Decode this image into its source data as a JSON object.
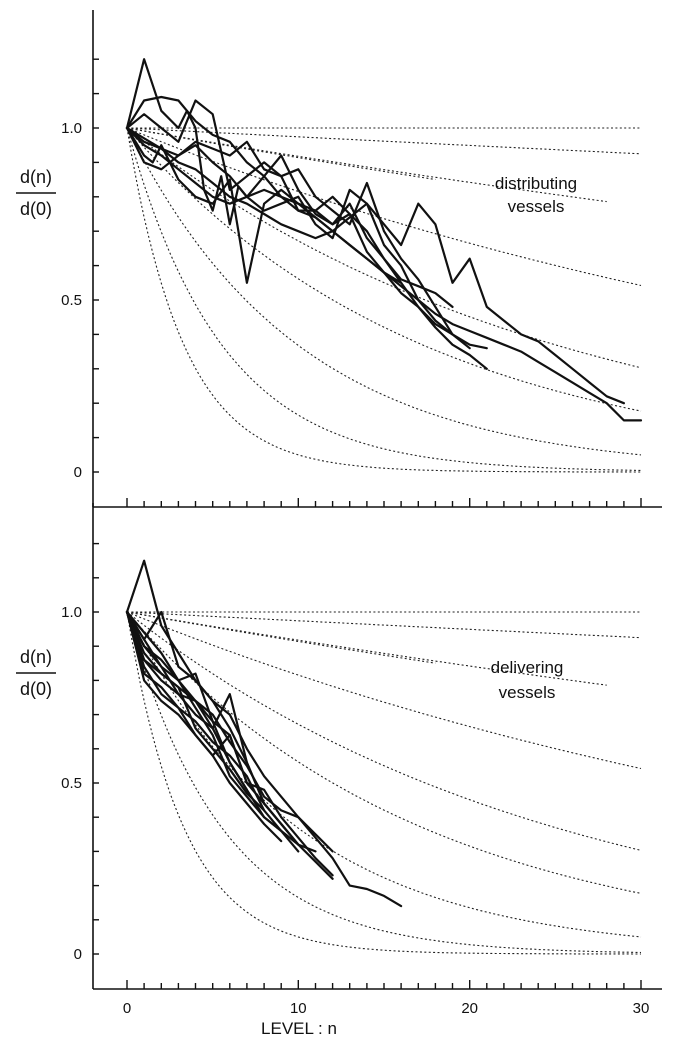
{
  "chart_data": [
    {
      "type": "line",
      "panel": "top",
      "annotation": [
        "distributing",
        "vessels"
      ],
      "ylabel_num": "d(n)",
      "ylabel_den": "d(0)",
      "xlabel": "",
      "xlim": [
        0,
        30
      ],
      "ylim": [
        0,
        1.2
      ],
      "y_tick_labels": [
        {
          "value": 0,
          "label": "0"
        },
        {
          "value": 0.5,
          "label": "0.5"
        },
        {
          "value": 1.0,
          "label": "1.0"
        }
      ],
      "x_tick_labels": [],
      "grid": false,
      "reference_curves": [
        {
          "rate": 0.0,
          "x_end": 30
        },
        {
          "rate": 0.0026,
          "x_end": 30
        },
        {
          "rate": 0.009,
          "x_end": 18
        },
        {
          "rate": 0.0086,
          "x_end": 28
        },
        {
          "rate": 0.0204,
          "x_end": 30
        },
        {
          "rate": 0.0398,
          "x_end": 30
        },
        {
          "rate": 0.0577,
          "x_end": 30
        },
        {
          "rate": 0.1,
          "x_end": 30
        },
        {
          "rate": 0.18,
          "x_end": 30
        },
        {
          "rate": 0.3,
          "x_end": 30
        }
      ],
      "series": [
        {
          "x": [
            0,
            1,
            2,
            3,
            3.5,
            4,
            4.5,
            5,
            5.5,
            6,
            6.5,
            7,
            8,
            9,
            10,
            11,
            12,
            13,
            14,
            15,
            16,
            17,
            18,
            19
          ],
          "y": [
            1.0,
            1.2,
            1.05,
            1.0,
            1.05,
            1.0,
            0.82,
            0.76,
            0.86,
            0.72,
            0.83,
            0.8,
            0.86,
            0.92,
            0.82,
            0.75,
            0.72,
            0.78,
            0.68,
            0.62,
            0.56,
            0.54,
            0.52,
            0.48
          ]
        },
        {
          "x": [
            0,
            1,
            2,
            3,
            4,
            5,
            6,
            7,
            8,
            9,
            10,
            11,
            12,
            13,
            14,
            15,
            16,
            17,
            18,
            19
          ],
          "y": [
            1.0,
            1.08,
            1.09,
            1.08,
            1.02,
            0.98,
            0.96,
            0.9,
            0.86,
            0.8,
            0.76,
            0.76,
            0.8,
            0.75,
            0.7,
            0.62,
            0.55,
            0.48,
            0.43,
            0.4
          ]
        },
        {
          "x": [
            0,
            1,
            2,
            3,
            4,
            5,
            6,
            7,
            8,
            9,
            10,
            11,
            12,
            13,
            14,
            15,
            16,
            17,
            18,
            19,
            20
          ],
          "y": [
            1.0,
            1.04,
            1.0,
            0.96,
            1.08,
            1.04,
            0.82,
            0.86,
            0.9,
            0.86,
            0.88,
            0.8,
            0.76,
            0.72,
            0.84,
            0.7,
            0.62,
            0.56,
            0.48,
            0.4,
            0.36
          ]
        },
        {
          "x": [
            0,
            1,
            1.5,
            2,
            3,
            4,
            5,
            6,
            6.5,
            7,
            8,
            9,
            10,
            11,
            12,
            13,
            14,
            15,
            16,
            17,
            18,
            19,
            20,
            21
          ],
          "y": [
            1.0,
            0.92,
            0.9,
            0.95,
            0.85,
            0.8,
            0.78,
            0.85,
            0.7,
            0.55,
            0.78,
            0.82,
            0.78,
            0.76,
            0.72,
            0.75,
            0.64,
            0.58,
            0.52,
            0.48,
            0.42,
            0.37,
            0.34,
            0.3
          ]
        },
        {
          "x": [
            0,
            1,
            2,
            3,
            4,
            5,
            6,
            7,
            8,
            9,
            10,
            11,
            12,
            13,
            14,
            15,
            16,
            17,
            18,
            19,
            20,
            21
          ],
          "y": [
            1.0,
            0.96,
            0.94,
            0.92,
            0.95,
            0.9,
            0.86,
            0.8,
            0.76,
            0.78,
            0.8,
            0.72,
            0.68,
            0.82,
            0.78,
            0.66,
            0.6,
            0.5,
            0.44,
            0.4,
            0.37,
            0.36
          ]
        },
        {
          "x": [
            0,
            1,
            2,
            3,
            4,
            5,
            6,
            7,
            8,
            9,
            10,
            11,
            12,
            13,
            14,
            15,
            16,
            17,
            18,
            19,
            20,
            21,
            22,
            23,
            24,
            25,
            26,
            27,
            28,
            29,
            30
          ],
          "y": [
            1.0,
            0.95,
            0.92,
            0.88,
            0.84,
            0.8,
            0.78,
            0.8,
            0.82,
            0.8,
            0.78,
            0.74,
            0.7,
            0.66,
            0.62,
            0.58,
            0.54,
            0.5,
            0.46,
            0.43,
            0.41,
            0.39,
            0.37,
            0.35,
            0.32,
            0.29,
            0.26,
            0.23,
            0.2,
            0.15,
            0.15
          ]
        },
        {
          "x": [
            0,
            1,
            2,
            3,
            4,
            5,
            6,
            7,
            8,
            9,
            10,
            11,
            12,
            13,
            14,
            15,
            16,
            17,
            18,
            19,
            20,
            21,
            22,
            23,
            24,
            25,
            26,
            27,
            28,
            29
          ],
          "y": [
            1.0,
            0.97,
            0.94,
            0.9,
            0.88,
            0.84,
            0.8,
            0.78,
            0.75,
            0.72,
            0.7,
            0.68,
            0.7,
            0.74,
            0.78,
            0.72,
            0.66,
            0.78,
            0.72,
            0.55,
            0.62,
            0.48,
            0.44,
            0.4,
            0.38,
            0.34,
            0.3,
            0.26,
            0.22,
            0.2
          ]
        },
        {
          "x": [
            0,
            1,
            2,
            3,
            4,
            5,
            6,
            7,
            8,
            9,
            10,
            11,
            12,
            13,
            14,
            15,
            16
          ],
          "y": [
            1.0,
            0.9,
            0.88,
            0.92,
            0.96,
            0.94,
            0.92,
            0.96,
            0.88,
            0.86,
            0.76,
            0.74,
            0.7,
            0.66,
            0.62,
            0.58,
            0.55
          ]
        }
      ]
    },
    {
      "type": "line",
      "panel": "bottom",
      "annotation": [
        "delivering",
        "vessels"
      ],
      "ylabel_num": "d(n)",
      "ylabel_den": "d(0)",
      "xlabel": "LEVEL : n",
      "xlim": [
        0,
        30
      ],
      "ylim": [
        0,
        1.2
      ],
      "y_tick_labels": [
        {
          "value": 0,
          "label": "0"
        },
        {
          "value": 0.5,
          "label": "0.5"
        },
        {
          "value": 1.0,
          "label": "1.0"
        }
      ],
      "x_tick_labels": [
        {
          "value": 0,
          "label": "0"
        },
        {
          "value": 10,
          "label": "10"
        },
        {
          "value": 20,
          "label": "20"
        },
        {
          "value": 30,
          "label": "30"
        }
      ],
      "grid": false,
      "reference_curves": [
        {
          "rate": 0.0,
          "x_end": 30
        },
        {
          "rate": 0.0026,
          "x_end": 30
        },
        {
          "rate": 0.009,
          "x_end": 18
        },
        {
          "rate": 0.0086,
          "x_end": 28
        },
        {
          "rate": 0.0204,
          "x_end": 30
        },
        {
          "rate": 0.0398,
          "x_end": 30
        },
        {
          "rate": 0.0577,
          "x_end": 30
        },
        {
          "rate": 0.1,
          "x_end": 30
        },
        {
          "rate": 0.18,
          "x_end": 30
        },
        {
          "rate": 0.3,
          "x_end": 30
        }
      ],
      "series": [
        {
          "x": [
            0,
            1,
            2,
            3,
            4,
            5,
            6,
            7,
            8,
            9,
            10,
            11,
            12,
            13,
            14,
            15,
            16
          ],
          "y": [
            1.0,
            1.15,
            0.96,
            0.88,
            0.8,
            0.74,
            0.7,
            0.6,
            0.52,
            0.46,
            0.4,
            0.34,
            0.28,
            0.2,
            0.19,
            0.17,
            0.14
          ]
        },
        {
          "x": [
            0,
            1,
            2,
            3,
            4,
            5,
            6,
            7,
            8,
            9,
            10,
            11,
            12
          ],
          "y": [
            1.0,
            0.92,
            1.0,
            0.84,
            0.8,
            0.74,
            0.66,
            0.56,
            0.44,
            0.38,
            0.32,
            0.27,
            0.22
          ]
        },
        {
          "x": [
            0,
            1,
            2,
            3,
            4,
            5,
            6,
            7,
            8,
            9,
            10,
            11,
            12
          ],
          "y": [
            1.0,
            0.9,
            0.84,
            0.8,
            0.82,
            0.68,
            0.64,
            0.5,
            0.48,
            0.4,
            0.34,
            0.28,
            0.23
          ]
        },
        {
          "x": [
            0,
            1,
            2,
            3,
            4,
            5,
            6,
            7,
            8,
            9,
            10,
            11,
            12
          ],
          "y": [
            1.0,
            0.88,
            0.82,
            0.78,
            0.74,
            0.7,
            0.62,
            0.55,
            0.46,
            0.42,
            0.4,
            0.35,
            0.3
          ]
        },
        {
          "x": [
            0,
            1,
            2,
            3,
            4,
            5,
            6,
            7,
            8,
            9,
            10,
            11
          ],
          "y": [
            1.0,
            0.86,
            0.8,
            0.76,
            0.7,
            0.66,
            0.76,
            0.56,
            0.44,
            0.38,
            0.32,
            0.3
          ]
        },
        {
          "x": [
            0,
            1,
            2,
            3,
            4,
            5,
            6,
            7,
            8,
            9,
            10
          ],
          "y": [
            1.0,
            0.84,
            0.76,
            0.72,
            0.68,
            0.62,
            0.58,
            0.52,
            0.42,
            0.36,
            0.32
          ]
        },
        {
          "x": [
            0,
            1,
            2,
            3,
            4,
            5,
            6,
            7,
            8,
            9,
            10
          ],
          "y": [
            1.0,
            0.9,
            0.86,
            0.8,
            0.74,
            0.68,
            0.56,
            0.48,
            0.4,
            0.36,
            0.3
          ]
        },
        {
          "x": [
            0,
            1,
            2,
            3,
            4,
            5,
            6,
            7,
            8,
            9
          ],
          "y": [
            1.0,
            0.82,
            0.78,
            0.72,
            0.64,
            0.58,
            0.5,
            0.44,
            0.38,
            0.33
          ]
        },
        {
          "x": [
            0,
            1,
            2,
            3,
            4,
            5,
            6,
            7,
            8,
            9
          ],
          "y": [
            1.0,
            0.94,
            0.88,
            0.8,
            0.72,
            0.64,
            0.52,
            0.46,
            0.4,
            0.36
          ]
        },
        {
          "x": [
            0,
            1,
            2,
            3,
            4,
            5,
            6,
            7,
            8
          ],
          "y": [
            1.0,
            0.86,
            0.82,
            0.78,
            0.66,
            0.6,
            0.54,
            0.47,
            0.42
          ]
        },
        {
          "x": [
            0,
            1,
            2,
            3,
            4,
            5,
            6,
            7,
            8
          ],
          "y": [
            1.0,
            0.8,
            0.74,
            0.7,
            0.64,
            0.58,
            0.64,
            0.5,
            0.44
          ]
        },
        {
          "x": [
            0,
            1,
            2,
            3,
            4,
            5,
            6,
            7
          ],
          "y": [
            1.0,
            0.92,
            0.84,
            0.76,
            0.74,
            0.66,
            0.56,
            0.48
          ]
        }
      ]
    }
  ]
}
